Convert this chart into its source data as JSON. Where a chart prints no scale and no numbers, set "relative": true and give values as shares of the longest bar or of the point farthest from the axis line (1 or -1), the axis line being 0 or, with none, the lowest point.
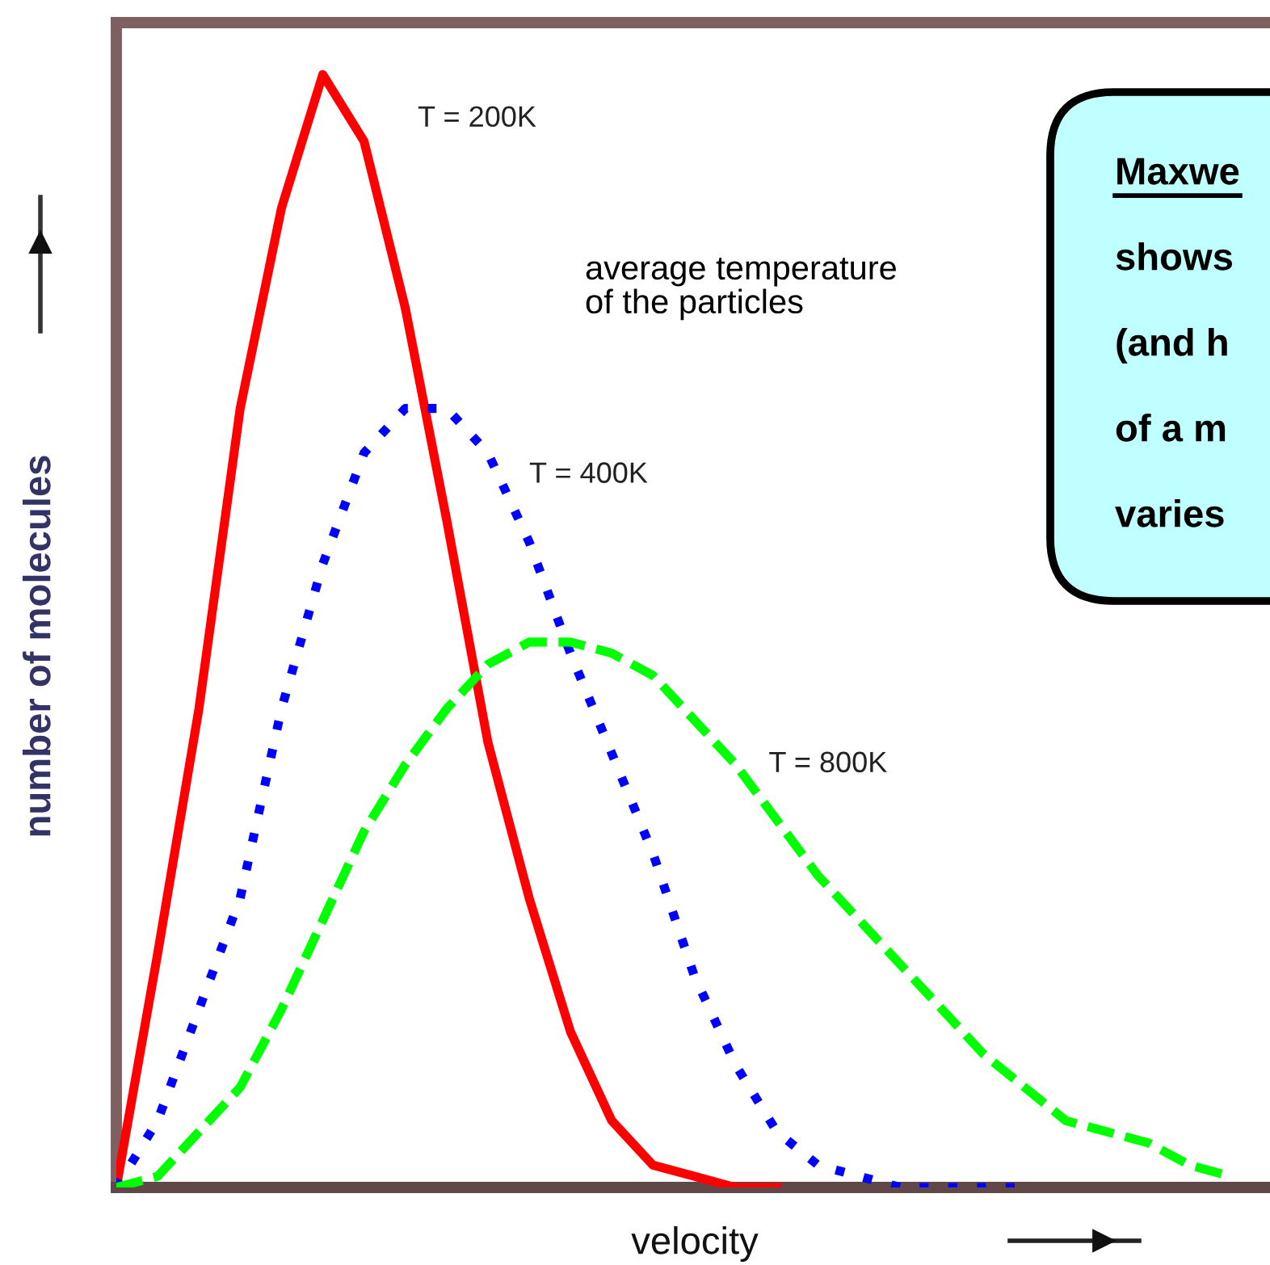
{
  "chart_data": {
    "type": "line",
    "relative": true,
    "xlabel": "velocity",
    "ylabel": "number of molecules",
    "categories": [
      null,
      null,
      null,
      null,
      null,
      null,
      null,
      null,
      null,
      null,
      null,
      null,
      null,
      null,
      null,
      null,
      null,
      null,
      null,
      null,
      null,
      null,
      null,
      null,
      null,
      null,
      null,
      null
    ],
    "series": [
      {
        "name": "T = 200K",
        "color": "#ff0000",
        "line_style": "solid",
        "values": [
          0,
          0.21,
          0.43,
          0.7,
          0.88,
          1,
          0.94,
          0.79,
          0.6,
          0.4,
          0.26,
          0.14,
          0.06,
          0.02,
          0.01,
          0,
          0,
          null,
          null,
          null,
          null,
          null,
          null,
          null,
          null,
          null,
          null,
          null
        ]
      },
      {
        "name": "T = 400K",
        "color": "#0000ff",
        "line_style": "dotted",
        "values": [
          0,
          0.06,
          0.16,
          0.26,
          0.43,
          0.56,
          0.66,
          0.7,
          0.7,
          0.66,
          0.58,
          0.48,
          0.39,
          0.3,
          0.19,
          0.11,
          0.05,
          0.02,
          0.01,
          0,
          0,
          0,
          0,
          null,
          null,
          null,
          null,
          null
        ]
      },
      {
        "name": "T = 800K",
        "color": "#00ff00",
        "line_style": "dashed",
        "values": [
          0,
          0.01,
          0.05,
          0.09,
          0.16,
          0.24,
          0.32,
          0.38,
          0.43,
          0.47,
          0.49,
          0.49,
          0.48,
          0.46,
          0.42,
          0.38,
          0.33,
          0.28,
          0.24,
          0.2,
          0.16,
          0.12,
          0.09,
          0.06,
          0.05,
          0.04,
          0.02,
          0.01
        ]
      }
    ],
    "annotations": [
      "average temperature\nof the particles",
      "Maxwe",
      "shows",
      "(and h",
      "of a m",
      "varies"
    ],
    "legend": false,
    "tick_labels": false
  }
}
